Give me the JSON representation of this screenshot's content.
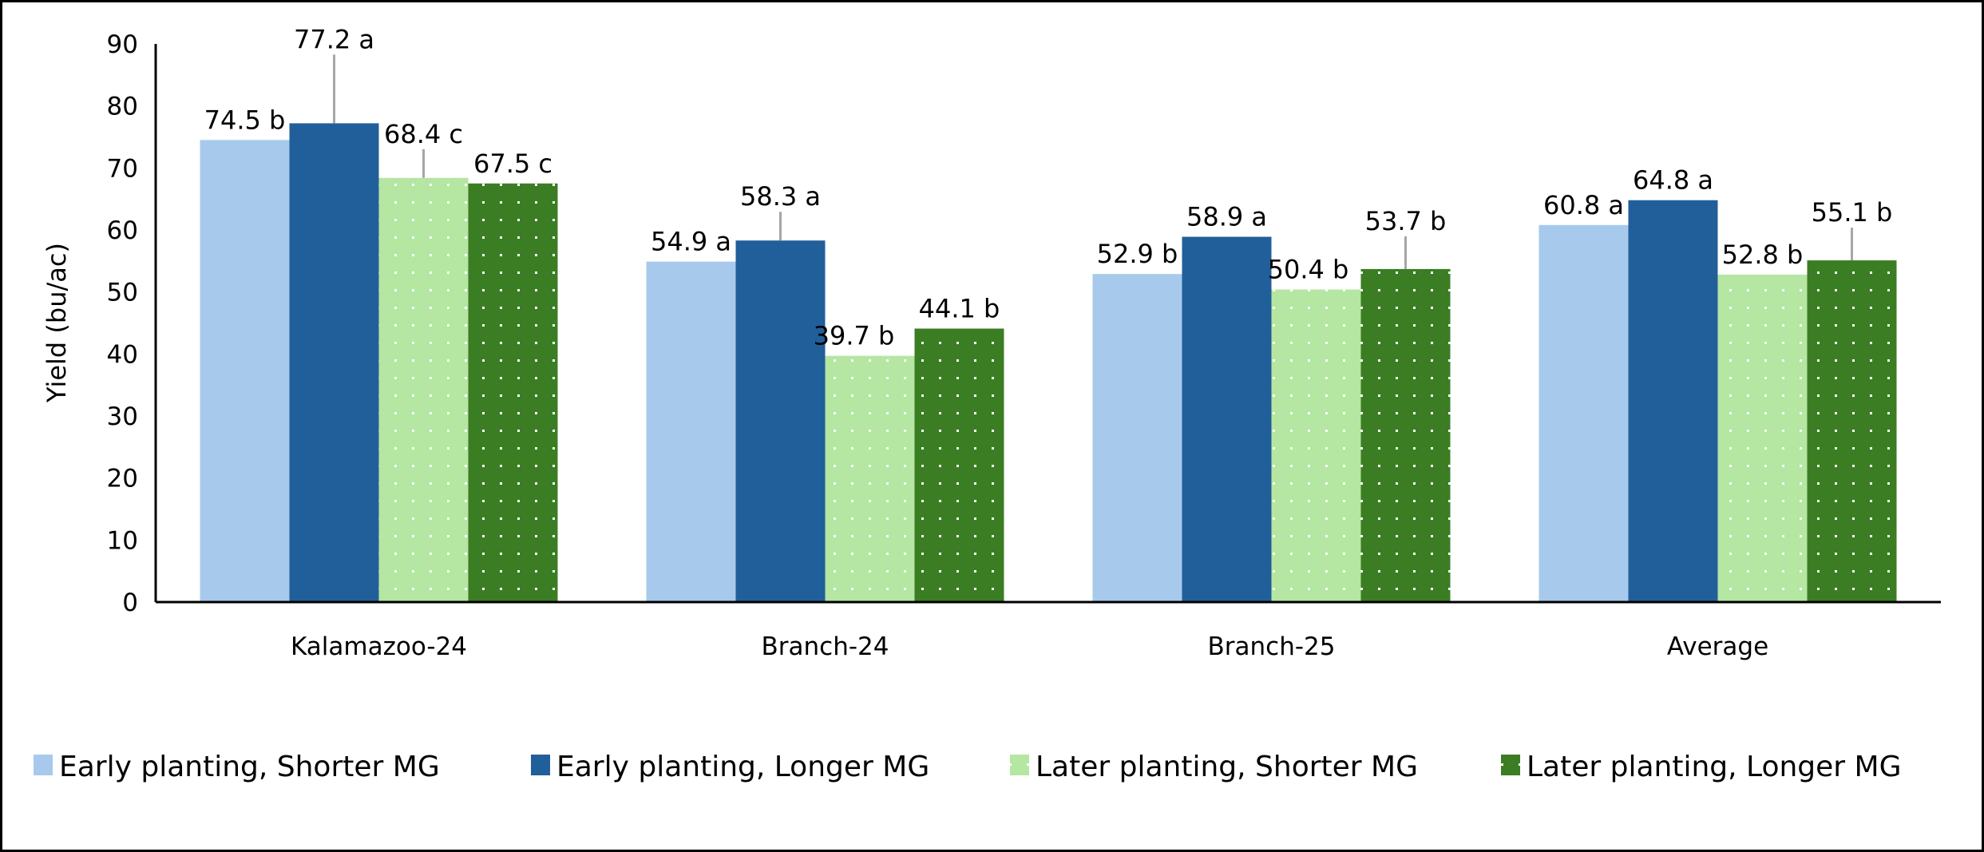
{
  "chart_data": {
    "type": "bar",
    "title": "",
    "xlabel": "",
    "ylabel": "Yield (bu/ac)",
    "ylim": [
      0,
      90
    ],
    "yticks": [
      0,
      10,
      20,
      30,
      40,
      50,
      60,
      70,
      80,
      90
    ],
    "grid": false,
    "legend_position": "bottom",
    "categories": [
      "Kalamazoo-24",
      "Branch-24",
      "Branch-25",
      "Average"
    ],
    "series": [
      {
        "name": "Early planting, Shorter MG",
        "color": "#A7CAEC",
        "pattern": "solid",
        "values": [
          74.5,
          54.9,
          52.9,
          60.8
        ],
        "labels": [
          "74.5 b",
          "54.9 a",
          "52.9 b",
          "60.8 a"
        ]
      },
      {
        "name": "Early planting, Longer MG",
        "color": "#215F9A",
        "pattern": "solid",
        "values": [
          77.2,
          58.3,
          58.9,
          64.8
        ],
        "labels": [
          "77.2 a",
          "58.3 a",
          "58.9 a",
          "64.8 a"
        ]
      },
      {
        "name": "Later planting, Shorter MG",
        "color": "#B5E6A2",
        "pattern": "dotted",
        "values": [
          68.4,
          39.7,
          50.4,
          52.8
        ],
        "labels": [
          "68.4 c",
          "39.7 b",
          "50.4 b",
          "52.8 b"
        ]
      },
      {
        "name": "Later planting, Longer MG",
        "color": "#3B7D23",
        "pattern": "dotted",
        "values": [
          67.5,
          44.1,
          53.7,
          55.1
        ],
        "labels": [
          "67.5 c",
          "44.1 b",
          "53.7 b",
          "55.1 b"
        ]
      }
    ]
  }
}
